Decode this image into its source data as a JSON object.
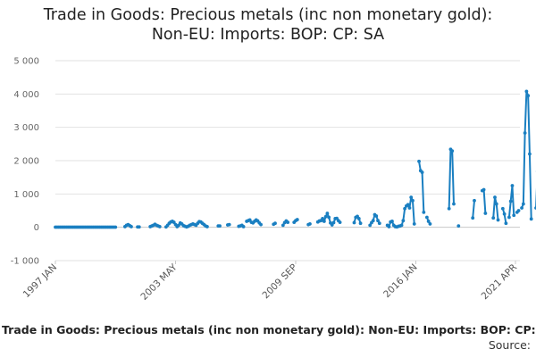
{
  "chart_data": {
    "type": "line",
    "title_line1": "Trade in Goods: Precious metals (inc non monetary gold):",
    "title_line2": "Non-EU: Imports: BOP: CP: SA",
    "footer_title": "Trade in Goods: Precious metals (inc non monetary gold): Non-EU: Imports: BOP: CP:",
    "source_label": "Source:",
    "ylim": [
      -1000,
      5000
    ],
    "y_ticks": [
      {
        "value": 5000,
        "label": "5 000"
      },
      {
        "value": 4000,
        "label": "4 000"
      },
      {
        "value": 3000,
        "label": "3 000"
      },
      {
        "value": 2000,
        "label": "2 000"
      },
      {
        "value": 1000,
        "label": "1 000"
      },
      {
        "value": 0,
        "label": "0"
      },
      {
        "value": -1000,
        "label": "-1 000"
      }
    ],
    "x_range": [
      "1997 JAN",
      "2021 APR"
    ],
    "x_ticks": [
      {
        "label": "1997 JAN",
        "year": 1997,
        "month": 1
      },
      {
        "label": "2003 MAY",
        "year": 2003,
        "month": 5
      },
      {
        "label": "2009 SEP",
        "year": 2009,
        "month": 9
      },
      {
        "label": "2016 JAN",
        "year": 2016,
        "month": 1
      },
      {
        "label": "2021 APR",
        "year": 2021,
        "month": 4
      }
    ],
    "grid": "horizontal",
    "colors": {
      "line": "#1a7fc1",
      "grid": "#e2e2e2",
      "zero_line": "#c8c8c8"
    },
    "series": [
      {
        "segments": [
          [
            [
              "1997-01",
              5
            ],
            [
              "1997-02",
              5
            ],
            [
              "1997-03",
              5
            ],
            [
              "1997-04",
              5
            ],
            [
              "1997-05",
              5
            ],
            [
              "1997-06",
              5
            ],
            [
              "1997-07",
              5
            ],
            [
              "1997-08",
              5
            ],
            [
              "1997-09",
              5
            ],
            [
              "1997-10",
              5
            ],
            [
              "1997-11",
              5
            ],
            [
              "1997-12",
              5
            ],
            [
              "1998-01",
              5
            ],
            [
              "1998-02",
              5
            ],
            [
              "1998-03",
              5
            ],
            [
              "1998-04",
              5
            ],
            [
              "1998-05",
              5
            ],
            [
              "1998-06",
              5
            ],
            [
              "1998-07",
              5
            ],
            [
              "1998-08",
              5
            ],
            [
              "1998-09",
              5
            ],
            [
              "1998-10",
              5
            ],
            [
              "1998-11",
              5
            ],
            [
              "1998-12",
              5
            ],
            [
              "1999-01",
              5
            ],
            [
              "1999-02",
              5
            ],
            [
              "1999-03",
              5
            ],
            [
              "1999-04",
              5
            ],
            [
              "1999-05",
              5
            ],
            [
              "1999-06",
              5
            ],
            [
              "1999-07",
              5
            ],
            [
              "1999-08",
              5
            ],
            [
              "1999-09",
              5
            ],
            [
              "1999-10",
              5
            ],
            [
              "1999-11",
              5
            ],
            [
              "1999-12",
              5
            ],
            [
              "2000-01",
              5
            ],
            [
              "2000-02",
              5
            ],
            [
              "2000-03",
              5
            ]
          ],
          [
            [
              "2000-09",
              20
            ],
            [
              "2000-10",
              60
            ],
            [
              "2000-11",
              80
            ],
            [
              "2000-12",
              50
            ],
            [
              "2001-01",
              20
            ]
          ],
          [
            [
              "2001-05",
              10
            ],
            [
              "2001-06",
              10
            ]
          ],
          [
            [
              "2002-01",
              20
            ],
            [
              "2002-02",
              40
            ],
            [
              "2002-03",
              60
            ],
            [
              "2002-04",
              90
            ],
            [
              "2002-05",
              60
            ],
            [
              "2002-06",
              40
            ],
            [
              "2002-07",
              20
            ]
          ],
          [
            [
              "2002-11",
              10
            ],
            [
              "2002-12",
              60
            ],
            [
              "2003-01",
              120
            ],
            [
              "2003-02",
              160
            ],
            [
              "2003-03",
              180
            ],
            [
              "2003-04",
              150
            ],
            [
              "2003-05",
              80
            ],
            [
              "2003-06",
              20
            ],
            [
              "2003-07",
              60
            ],
            [
              "2003-08",
              130
            ],
            [
              "2003-09",
              100
            ],
            [
              "2003-10",
              50
            ],
            [
              "2003-11",
              30
            ],
            [
              "2003-12",
              10
            ],
            [
              "2004-01",
              30
            ],
            [
              "2004-02",
              60
            ],
            [
              "2004-03",
              80
            ],
            [
              "2004-04",
              100
            ],
            [
              "2004-05",
              80
            ],
            [
              "2004-06",
              60
            ],
            [
              "2004-07",
              120
            ],
            [
              "2004-08",
              170
            ],
            [
              "2004-09",
              160
            ],
            [
              "2004-10",
              120
            ],
            [
              "2004-11",
              80
            ],
            [
              "2004-12",
              40
            ],
            [
              "2005-01",
              20
            ]
          ],
          [
            [
              "2005-08",
              40
            ],
            [
              "2005-09",
              40
            ]
          ],
          [
            [
              "2006-02",
              70
            ],
            [
              "2006-03",
              80
            ]
          ],
          [
            [
              "2006-09",
              30
            ],
            [
              "2006-10",
              40
            ],
            [
              "2006-11",
              60
            ],
            [
              "2006-12",
              20
            ]
          ],
          [
            [
              "2007-02",
              180
            ],
            [
              "2007-03",
              200
            ],
            [
              "2007-04",
              220
            ],
            [
              "2007-05",
              150
            ],
            [
              "2007-06",
              130
            ],
            [
              "2007-07",
              180
            ],
            [
              "2007-08",
              220
            ],
            [
              "2007-09",
              190
            ],
            [
              "2007-10",
              130
            ],
            [
              "2007-11",
              80
            ]
          ],
          [
            [
              "2008-07",
              90
            ],
            [
              "2008-08",
              120
            ]
          ],
          [
            [
              "2009-01",
              60
            ],
            [
              "2009-02",
              140
            ],
            [
              "2009-03",
              190
            ],
            [
              "2009-04",
              150
            ]
          ],
          [
            [
              "2009-08",
              150
            ],
            [
              "2009-09",
              200
            ],
            [
              "2009-10",
              230
            ]
          ],
          [
            [
              "2010-05",
              80
            ],
            [
              "2010-06",
              100
            ]
          ],
          [
            [
              "2010-11",
              160
            ],
            [
              "2010-12",
              190
            ],
            [
              "2011-01",
              200
            ],
            [
              "2011-02",
              260
            ],
            [
              "2011-03",
              180
            ],
            [
              "2011-04",
              320
            ],
            [
              "2011-05",
              420
            ],
            [
              "2011-06",
              300
            ],
            [
              "2011-07",
              130
            ],
            [
              "2011-08",
              70
            ],
            [
              "2011-09",
              140
            ],
            [
              "2011-10",
              260
            ],
            [
              "2011-11",
              270
            ],
            [
              "2011-12",
              200
            ],
            [
              "2012-01",
              150
            ]
          ],
          [
            [
              "2012-10",
              140
            ],
            [
              "2012-11",
              300
            ],
            [
              "2012-12",
              330
            ],
            [
              "2013-01",
              260
            ],
            [
              "2013-02",
              120
            ]
          ],
          [
            [
              "2013-08",
              60
            ],
            [
              "2013-09",
              140
            ],
            [
              "2013-10",
              200
            ],
            [
              "2013-11",
              380
            ],
            [
              "2013-12",
              340
            ],
            [
              "2014-01",
              200
            ],
            [
              "2014-02",
              120
            ]
          ],
          [
            [
              "2014-07",
              60
            ],
            [
              "2014-08",
              20
            ],
            [
              "2014-09",
              160
            ],
            [
              "2014-10",
              180
            ],
            [
              "2014-11",
              60
            ],
            [
              "2014-12",
              20
            ],
            [
              "2015-01",
              10
            ],
            [
              "2015-02",
              30
            ],
            [
              "2015-03",
              40
            ],
            [
              "2015-04",
              60
            ],
            [
              "2015-05",
              200
            ],
            [
              "2015-06",
              560
            ],
            [
              "2015-07",
              640
            ],
            [
              "2015-08",
              680
            ],
            [
              "2015-09",
              580
            ],
            [
              "2015-10",
              900
            ],
            [
              "2015-11",
              800
            ],
            [
              "2015-12",
              100
            ]
          ],
          [
            [
              "2016-03",
              1980
            ],
            [
              "2016-04",
              1700
            ],
            [
              "2016-05",
              1650
            ],
            [
              "2016-06",
              450
            ]
          ],
          [
            [
              "2016-08",
              300
            ],
            [
              "2016-09",
              180
            ],
            [
              "2016-10",
              100
            ]
          ],
          [
            [
              "2017-10",
              560
            ],
            [
              "2017-11",
              2340
            ],
            [
              "2017-12",
              2290
            ],
            [
              "2018-01",
              700
            ]
          ],
          [
            [
              "2018-04",
              40
            ]
          ],
          [
            [
              "2019-01",
              280
            ],
            [
              "2019-02",
              800
            ]
          ],
          [
            [
              "2019-07",
              1100
            ],
            [
              "2019-08",
              1130
            ],
            [
              "2019-09",
              420
            ]
          ],
          [
            [
              "2020-02",
              280
            ],
            [
              "2020-03",
              900
            ],
            [
              "2020-04",
              700
            ],
            [
              "2020-05",
              220
            ]
          ],
          [
            [
              "2020-08",
              560
            ],
            [
              "2020-09",
              400
            ],
            [
              "2020-10",
              120
            ]
          ],
          [
            [
              "2020-12",
              300
            ],
            [
              "2021-01",
              780
            ],
            [
              "2021-02",
              1250
            ],
            [
              "2021-03",
              360
            ]
          ],
          [
            [
              "2021-05",
              450
            ],
            [
              "2021-06",
              500
            ]
          ],
          [
            [
              "2021-08",
              580
            ],
            [
              "2021-09",
              700
            ],
            [
              "2021-10",
              2830
            ],
            [
              "2021-11",
              4080
            ],
            [
              "2021-12",
              3950
            ],
            [
              "2022-01",
              2200
            ],
            [
              "2022-02",
              250
            ]
          ],
          [
            [
              "2022-05",
              580
            ],
            [
              "2022-06",
              1680
            ]
          ],
          [
            [
              "2023-01",
              1880
            ]
          ],
          [
            [
              "2023-05",
              200
            ],
            [
              "2023-06",
              300
            ]
          ],
          [
            [
              "2023-09",
              1150
            ],
            [
              "2023-10",
              1350
            ],
            [
              "2023-11",
              800
            ]
          ],
          [
            [
              "2024-02",
              200
            ],
            [
              "2024-03",
              1340
            ]
          ]
        ]
      }
    ]
  }
}
